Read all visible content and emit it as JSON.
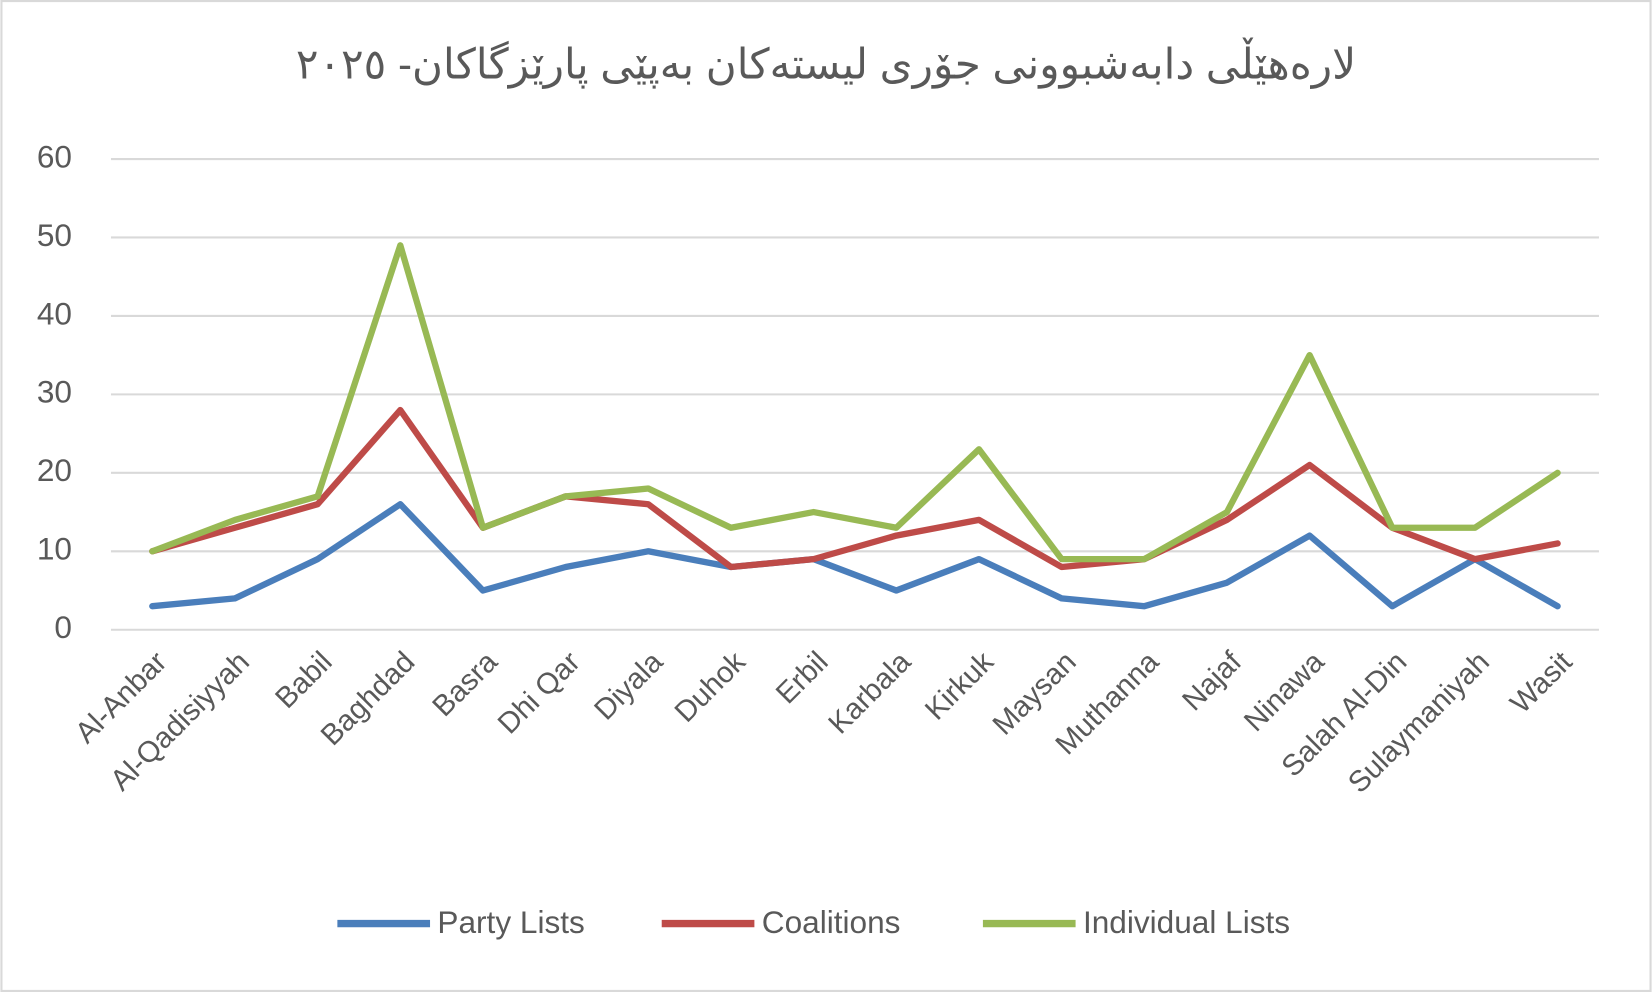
{
  "chart_data": {
    "type": "line",
    "title": "لارەهێڵی دابەشبوونی جۆری لیستەکان بەپێی پارێزگاکان- ٢٠٢٥",
    "categories": [
      "Al-Anbar",
      "Al-Qadisiyyah",
      "Babil",
      "Baghdad",
      "Basra",
      "Dhi Qar",
      "Diyala",
      "Duhok",
      "Erbil",
      "Karbala",
      "Kirkuk",
      "Maysan",
      "Muthanna",
      "Najaf",
      "Ninawa",
      "Salah Al-Din",
      "Sulaymaniyah",
      "Wasit"
    ],
    "series": [
      {
        "name": "Party Lists",
        "color": "#4a7ebb",
        "values": [
          3,
          4,
          9,
          16,
          5,
          8,
          10,
          8,
          9,
          5,
          9,
          4,
          3,
          6,
          12,
          3,
          9,
          3
        ]
      },
      {
        "name": "Coalitions",
        "color": "#be4b48",
        "values": [
          10,
          13,
          16,
          28,
          13,
          17,
          16,
          8,
          9,
          12,
          14,
          8,
          9,
          14,
          21,
          13,
          9,
          11
        ]
      },
      {
        "name": "Individual Lists",
        "color": "#98b954",
        "values": [
          10,
          14,
          17,
          49,
          13,
          17,
          18,
          13,
          15,
          13,
          23,
          9,
          9,
          15,
          35,
          13,
          13,
          20
        ]
      }
    ],
    "ylim": [
      0,
      60
    ],
    "yticks": [
      0,
      10,
      20,
      30,
      40,
      50,
      60
    ],
    "grid": true,
    "legend": "bottom"
  }
}
